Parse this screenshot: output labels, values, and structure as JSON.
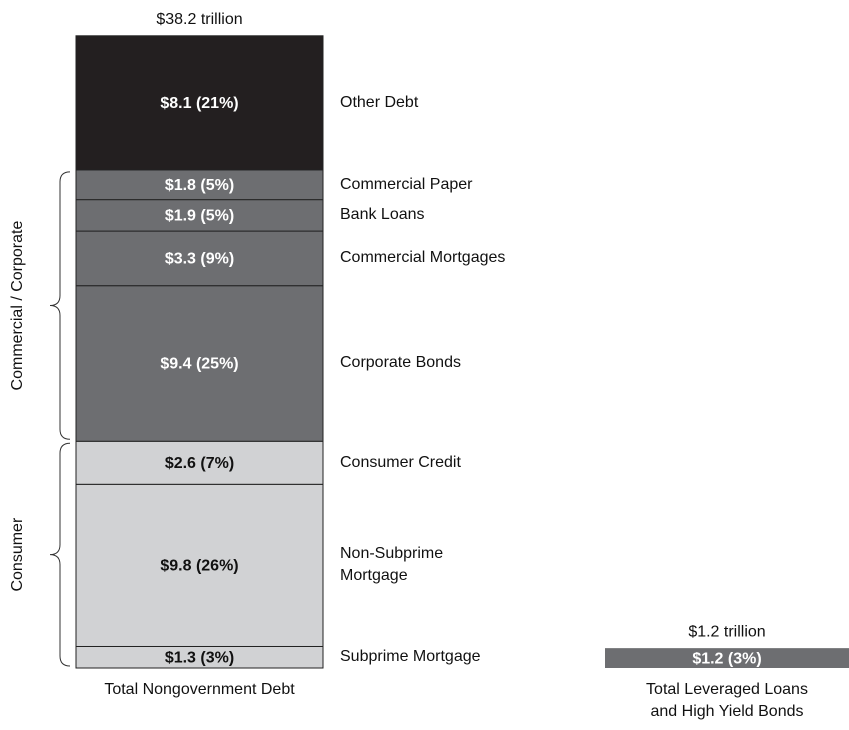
{
  "chart_data": {
    "type": "stacked_bar",
    "bars": [
      {
        "category": "Total Nongovernment Debt",
        "total_label": "$38.2 trillion",
        "segments": [
          {
            "name": "Subprime Mortgage",
            "value": 1.3,
            "value_label": "$1.3 (3%)",
            "color": "#d1d2d4"
          },
          {
            "name": "Non-Subprime\nMortgage",
            "value": 9.8,
            "value_label": "$9.8 (26%)",
            "color": "#d1d2d4"
          },
          {
            "name": "Consumer Credit",
            "value": 2.6,
            "value_label": "$2.6 (7%)",
            "color": "#d1d2d4"
          },
          {
            "name": "Corporate Bonds",
            "value": 9.4,
            "value_label": "$9.4 (25%)",
            "color": "#6d6e71"
          },
          {
            "name": "Commercial Mortgages",
            "value": 3.3,
            "value_label": "$3.3 (9%)",
            "color": "#6d6e71"
          },
          {
            "name": "Bank Loans",
            "value": 1.9,
            "value_label": "$1.9 (5%)",
            "color": "#6d6e71"
          },
          {
            "name": "Commercial Paper",
            "value": 1.8,
            "value_label": "$1.8 (5%)",
            "color": "#6d6e71"
          },
          {
            "name": "Other Debt",
            "value": 8.1,
            "value_label": "$8.1 (21%)",
            "color": "#231f20"
          }
        ],
        "groups": [
          {
            "label": "Consumer",
            "segments": [
              0,
              1,
              2
            ]
          },
          {
            "label": "Commercial / Corporate",
            "segments": [
              3,
              4,
              5,
              6
            ]
          }
        ]
      },
      {
        "category": "Total Leveraged Loans\nand High Yield Bonds",
        "total_label": "$1.2 trillion",
        "segments": [
          {
            "value": 1.2,
            "value_label": "$1.2 (3%)",
            "color": "#6d6e71"
          }
        ]
      }
    ]
  }
}
